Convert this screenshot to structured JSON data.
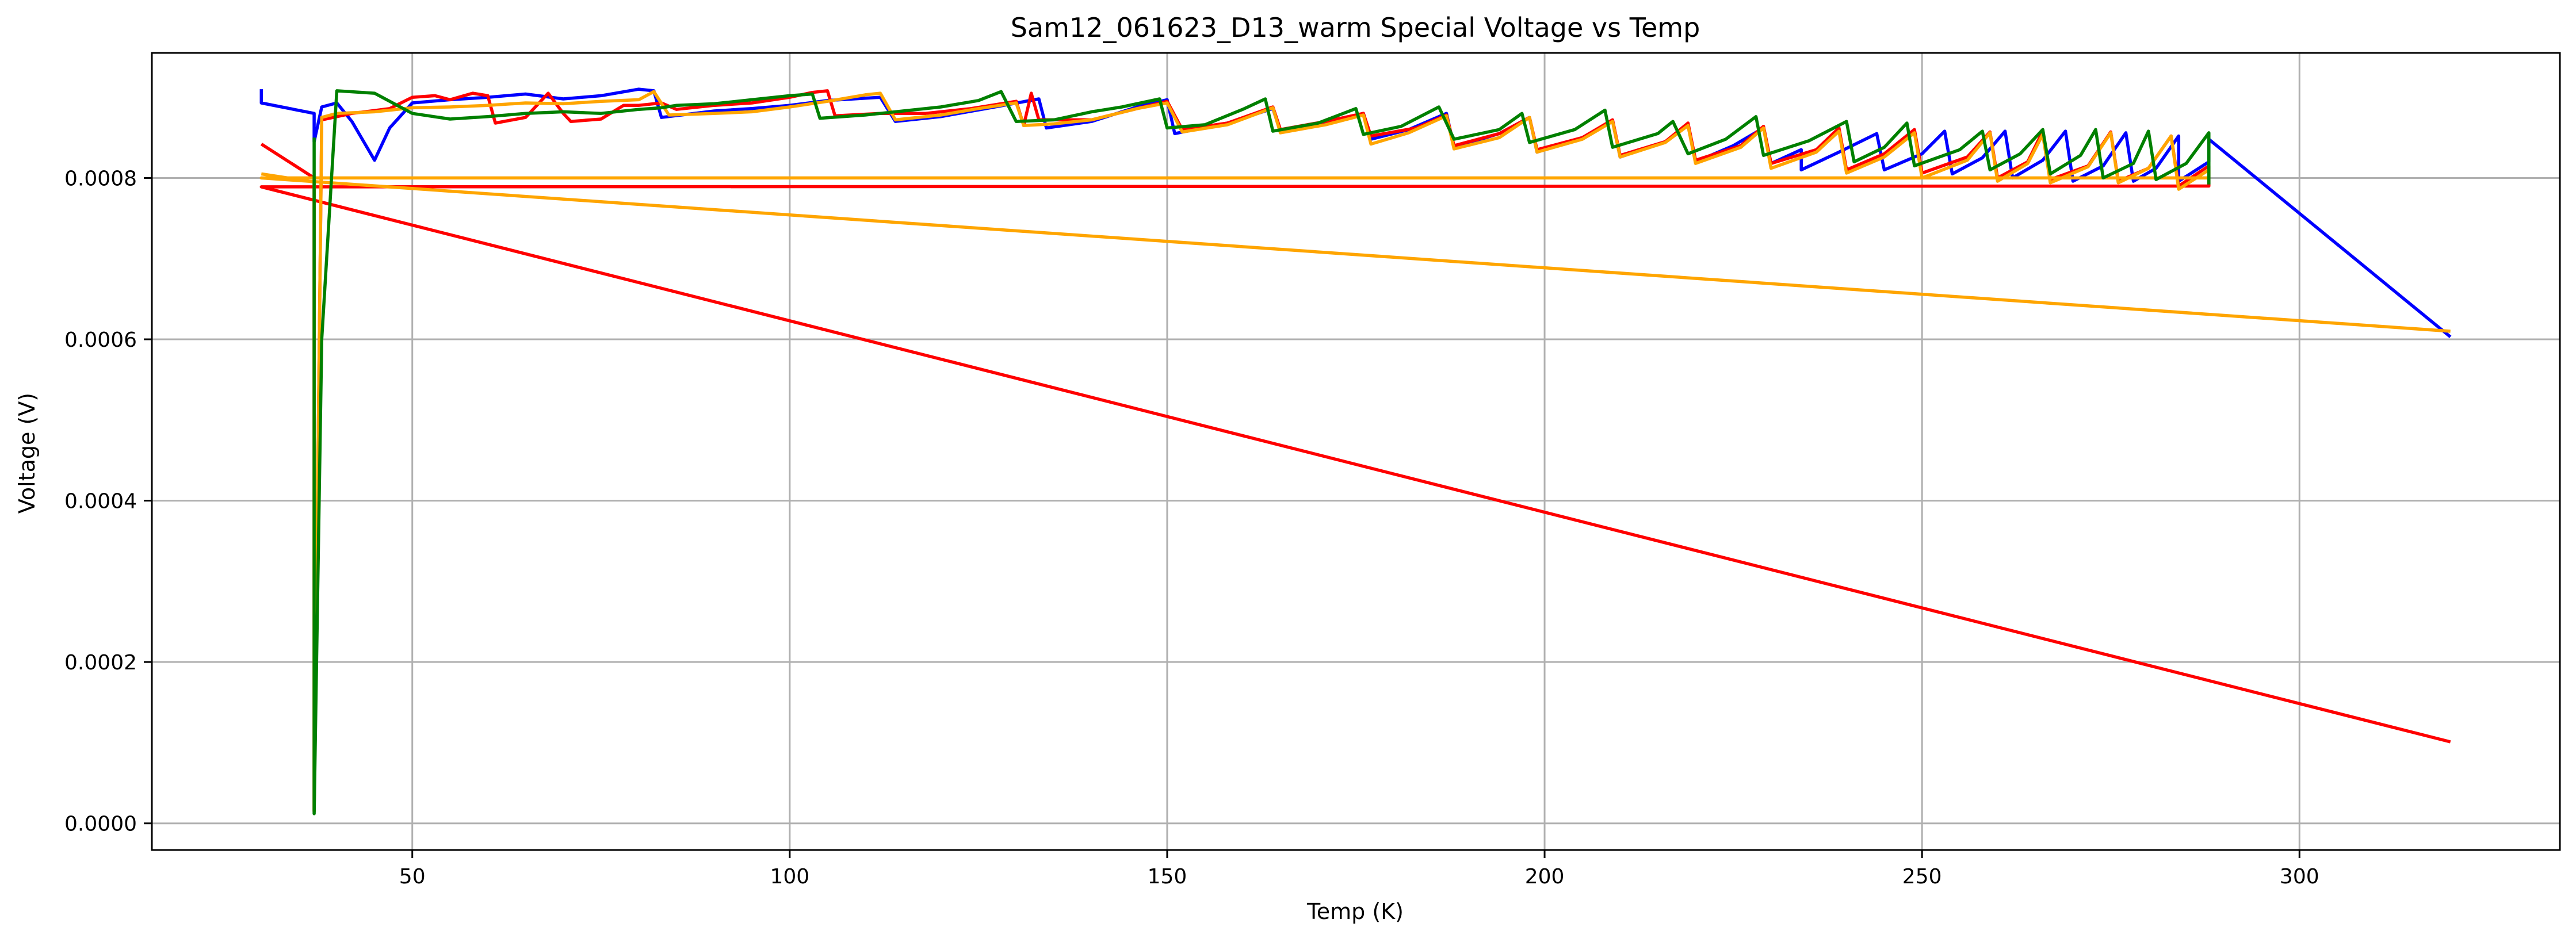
{
  "chart_data": {
    "type": "line",
    "title": "Sam12_061623_D13_warm Special Voltage vs Temp",
    "xlabel": "Temp (K)",
    "ylabel": "Voltage (V)",
    "xlim": [
      15.5,
      334.5
    ],
    "ylim": [
      -3.3e-05,
      0.000955
    ],
    "xticks": [
      50,
      100,
      150,
      200,
      250,
      300
    ],
    "xtick_labels": [
      "50",
      "100",
      "150",
      "200",
      "250",
      "300"
    ],
    "yticks": [
      0.0,
      0.0002,
      0.0004,
      0.0006,
      0.0008
    ],
    "ytick_labels": [
      "0.0000",
      "0.0002",
      "0.0004",
      "0.0006",
      "0.0008"
    ],
    "grid": true,
    "legend": "none",
    "series": [
      {
        "color": "#0000ff",
        "points": [
          [
            30,
            0.00091
          ],
          [
            30,
            0.000893
          ],
          [
            37,
            0.00088
          ],
          [
            37,
            0.000845
          ],
          [
            38,
            0.000888
          ],
          [
            40,
            0.000893
          ],
          [
            42,
            0.00087
          ],
          [
            45,
            0.000822
          ],
          [
            47,
            0.000862
          ],
          [
            50,
            0.000893
          ],
          [
            55,
            0.000897
          ],
          [
            60,
            0.0009
          ],
          [
            65,
            0.000904
          ],
          [
            70,
            0.000898
          ],
          [
            75,
            0.000902
          ],
          [
            80,
            0.00091
          ],
          [
            82,
            0.000908
          ],
          [
            83,
            0.000875
          ],
          [
            90,
            0.000883
          ],
          [
            95,
            0.000886
          ],
          [
            100,
            0.00089
          ],
          [
            105,
            0.000896
          ],
          [
            112,
            0.0009
          ],
          [
            114,
            0.00087
          ],
          [
            120,
            0.000876
          ],
          [
            126,
            0.000886
          ],
          [
            133,
            0.000898
          ],
          [
            134,
            0.000862
          ],
          [
            140,
            0.00087
          ],
          [
            146,
            0.000888
          ],
          [
            150,
            0.000897
          ],
          [
            151,
            0.000855
          ],
          [
            158,
            0.000868
          ],
          [
            164,
            0.000886
          ],
          [
            165,
            0.000858
          ],
          [
            171,
            0.000868
          ],
          [
            176,
            0.00088
          ],
          [
            177,
            0.000848
          ],
          [
            182,
            0.00086
          ],
          [
            187,
            0.00088
          ],
          [
            188,
            0.000838
          ],
          [
            194,
            0.000855
          ],
          [
            198,
            0.000875
          ],
          [
            199,
            0.000832
          ],
          [
            205,
            0.00085
          ],
          [
            209,
            0.00087
          ],
          [
            210,
            0.000826
          ],
          [
            216,
            0.000845
          ],
          [
            219,
            0.000865
          ],
          [
            220,
            0.00082
          ],
          [
            225,
            0.00084
          ],
          [
            229,
            0.000862
          ],
          [
            230,
            0.000818
          ],
          [
            234,
            0.000835
          ],
          [
            234,
            0.00081
          ],
          [
            239,
            0.000832
          ],
          [
            244,
            0.000855
          ],
          [
            245,
            0.00081
          ],
          [
            250,
            0.00083
          ],
          [
            253,
            0.000858
          ],
          [
            254,
            0.000805
          ],
          [
            258,
            0.000825
          ],
          [
            261,
            0.000858
          ],
          [
            262,
            0.0008
          ],
          [
            266,
            0.000822
          ],
          [
            269,
            0.000858
          ],
          [
            270,
            0.000796
          ],
          [
            274,
            0.000815
          ],
          [
            277,
            0.000856
          ],
          [
            278,
            0.000796
          ],
          [
            281,
            0.000812
          ],
          [
            284,
            0.000852
          ],
          [
            284,
            0.000796
          ],
          [
            288,
            0.00082
          ],
          [
            288,
            0.000848
          ],
          [
            320,
            0.000603
          ]
        ]
      },
      {
        "color": "#ff0000",
        "points": [
          [
            30,
            0.000842
          ],
          [
            37,
            0.0008
          ],
          [
            37,
            1.5e-05
          ],
          [
            38,
            0.000872
          ],
          [
            42,
            0.00088
          ],
          [
            47,
            0.000886
          ],
          [
            50,
            0.0009
          ],
          [
            53,
            0.000902
          ],
          [
            55,
            0.000897
          ],
          [
            58,
            0.000905
          ],
          [
            60,
            0.000902
          ],
          [
            61,
            0.000868
          ],
          [
            65,
            0.000875
          ],
          [
            68,
            0.000905
          ],
          [
            70,
            0.00088
          ],
          [
            71,
            0.00087
          ],
          [
            75,
            0.000873
          ],
          [
            78,
            0.00089
          ],
          [
            80,
            0.00089
          ],
          [
            83,
            0.000893
          ],
          [
            85,
            0.000885
          ],
          [
            90,
            0.00089
          ],
          [
            95,
            0.000893
          ],
          [
            100,
            0.0009
          ],
          [
            103,
            0.000906
          ],
          [
            105,
            0.000908
          ],
          [
            106,
            0.000877
          ],
          [
            112,
            0.00088
          ],
          [
            118,
            0.00088
          ],
          [
            124,
            0.000886
          ],
          [
            130,
            0.000895
          ],
          [
            131,
            0.000865
          ],
          [
            132,
            0.000905
          ],
          [
            133,
            0.000872
          ],
          [
            140,
            0.000872
          ],
          [
            146,
            0.000886
          ],
          [
            150,
            0.000895
          ],
          [
            152,
            0.00086
          ],
          [
            158,
            0.000868
          ],
          [
            164,
            0.000888
          ],
          [
            165,
            0.00086
          ],
          [
            171,
            0.00087
          ],
          [
            176,
            0.00088
          ],
          [
            177,
            0.000852
          ],
          [
            183,
            0.000862
          ],
          [
            187,
            0.000878
          ],
          [
            188,
            0.00084
          ],
          [
            194,
            0.000855
          ],
          [
            198,
            0.000875
          ],
          [
            199,
            0.000835
          ],
          [
            205,
            0.00085
          ],
          [
            209,
            0.000872
          ],
          [
            210,
            0.000828
          ],
          [
            216,
            0.000845
          ],
          [
            219,
            0.000868
          ],
          [
            220,
            0.000822
          ],
          [
            226,
            0.00084
          ],
          [
            229,
            0.000864
          ],
          [
            230,
            0.000818
          ],
          [
            236,
            0.000835
          ],
          [
            239,
            0.000862
          ],
          [
            240,
            0.00081
          ],
          [
            245,
            0.00083
          ],
          [
            249,
            0.00086
          ],
          [
            250,
            0.000806
          ],
          [
            256,
            0.000826
          ],
          [
            259,
            0.000857
          ],
          [
            260,
            0.0008
          ],
          [
            264,
            0.00082
          ],
          [
            266,
            0.000858
          ],
          [
            267,
            0.000798
          ],
          [
            272,
            0.000815
          ],
          [
            275,
            0.000857
          ],
          [
            276,
            0.000796
          ],
          [
            280,
            0.000812
          ],
          [
            283,
            0.000852
          ],
          [
            284,
            0.00079
          ],
          [
            288,
            0.000815
          ],
          [
            288,
            0.00079
          ],
          [
            30,
            0.000789
          ],
          [
            320,
            0.000101
          ]
        ]
      },
      {
        "color": "#ffa500",
        "points": [
          [
            30,
            0.000805
          ],
          [
            37,
            0.000795
          ],
          [
            37,
            1.5e-05
          ],
          [
            38,
            0.000875
          ],
          [
            40,
            0.00088
          ],
          [
            45,
            0.000882
          ],
          [
            50,
            0.000887
          ],
          [
            55,
            0.000888
          ],
          [
            60,
            0.00089
          ],
          [
            65,
            0.000893
          ],
          [
            70,
            0.000892
          ],
          [
            75,
            0.000895
          ],
          [
            80,
            0.000897
          ],
          [
            82,
            0.000907
          ],
          [
            84,
            0.000878
          ],
          [
            90,
            0.00088
          ],
          [
            95,
            0.000882
          ],
          [
            100,
            0.000888
          ],
          [
            105,
            0.000895
          ],
          [
            110,
            0.000903
          ],
          [
            112,
            0.000905
          ],
          [
            114,
            0.000872
          ],
          [
            120,
            0.000878
          ],
          [
            125,
            0.000886
          ],
          [
            130,
            0.000893
          ],
          [
            131,
            0.000865
          ],
          [
            135,
            0.000867
          ],
          [
            140,
            0.000872
          ],
          [
            146,
            0.000886
          ],
          [
            150,
            0.000893
          ],
          [
            152,
            0.000857
          ],
          [
            158,
            0.000866
          ],
          [
            164,
            0.000887
          ],
          [
            165,
            0.000856
          ],
          [
            171,
            0.000866
          ],
          [
            176,
            0.000878
          ],
          [
            177,
            0.000842
          ],
          [
            182,
            0.000856
          ],
          [
            187,
            0.000877
          ],
          [
            188,
            0.000836
          ],
          [
            194,
            0.00085
          ],
          [
            198,
            0.000875
          ],
          [
            199,
            0.000832
          ],
          [
            205,
            0.000848
          ],
          [
            209,
            0.00087
          ],
          [
            210,
            0.000826
          ],
          [
            216,
            0.000844
          ],
          [
            219,
            0.000865
          ],
          [
            220,
            0.000818
          ],
          [
            226,
            0.000838
          ],
          [
            229,
            0.000862
          ],
          [
            230,
            0.000812
          ],
          [
            236,
            0.000832
          ],
          [
            239,
            0.000858
          ],
          [
            240,
            0.000806
          ],
          [
            245,
            0.000826
          ],
          [
            249,
            0.000856
          ],
          [
            250,
            0.0008
          ],
          [
            256,
            0.000822
          ],
          [
            259,
            0.000856
          ],
          [
            260,
            0.000796
          ],
          [
            264,
            0.000818
          ],
          [
            266,
            0.000854
          ],
          [
            267,
            0.000794
          ],
          [
            272,
            0.000814
          ],
          [
            275,
            0.000856
          ],
          [
            276,
            0.000794
          ],
          [
            280,
            0.000812
          ],
          [
            283,
            0.000852
          ],
          [
            284,
            0.000786
          ],
          [
            288,
            0.00081
          ],
          [
            288,
            0.0008
          ],
          [
            30,
            0.0008
          ],
          [
            320,
            0.00061
          ]
        ]
      },
      {
        "color": "#008000",
        "points": [
          [
            37,
            0.00085
          ],
          [
            37,
            1.2e-05
          ],
          [
            38,
            0.0006
          ],
          [
            40,
            0.000908
          ],
          [
            45,
            0.000905
          ],
          [
            50,
            0.00088
          ],
          [
            55,
            0.000873
          ],
          [
            60,
            0.000876
          ],
          [
            65,
            0.00088
          ],
          [
            70,
            0.000882
          ],
          [
            75,
            0.00088
          ],
          [
            80,
            0.000885
          ],
          [
            83,
            0.000887
          ],
          [
            85,
            0.00089
          ],
          [
            90,
            0.000892
          ],
          [
            95,
            0.000897
          ],
          [
            100,
            0.000902
          ],
          [
            103,
            0.000904
          ],
          [
            104,
            0.000874
          ],
          [
            110,
            0.000878
          ],
          [
            115,
            0.000883
          ],
          [
            120,
            0.000888
          ],
          [
            125,
            0.000896
          ],
          [
            128,
            0.000907
          ],
          [
            130,
            0.00087
          ],
          [
            135,
            0.000872
          ],
          [
            140,
            0.000882
          ],
          [
            144,
            0.000888
          ],
          [
            149,
            0.000898
          ],
          [
            150,
            0.000862
          ],
          [
            155,
            0.000866
          ],
          [
            160,
            0.000885
          ],
          [
            163,
            0.000898
          ],
          [
            164,
            0.000858
          ],
          [
            170,
            0.000868
          ],
          [
            175,
            0.000886
          ],
          [
            176,
            0.000854
          ],
          [
            181,
            0.000864
          ],
          [
            186,
            0.000888
          ],
          [
            188,
            0.000848
          ],
          [
            194,
            0.00086
          ],
          [
            197,
            0.00088
          ],
          [
            198,
            0.000844
          ],
          [
            204,
            0.00086
          ],
          [
            208,
            0.000884
          ],
          [
            209,
            0.000838
          ],
          [
            215,
            0.000855
          ],
          [
            217,
            0.00087
          ],
          [
            219,
            0.00083
          ],
          [
            224,
            0.000848
          ],
          [
            228,
            0.000876
          ],
          [
            229,
            0.000828
          ],
          [
            235,
            0.000846
          ],
          [
            240,
            0.00087
          ],
          [
            241,
            0.00082
          ],
          [
            245,
            0.000838
          ],
          [
            248,
            0.000868
          ],
          [
            249,
            0.000815
          ],
          [
            255,
            0.000835
          ],
          [
            258,
            0.000858
          ],
          [
            259,
            0.00081
          ],
          [
            263,
            0.00083
          ],
          [
            266,
            0.00086
          ],
          [
            267,
            0.000805
          ],
          [
            271,
            0.000828
          ],
          [
            273,
            0.00086
          ],
          [
            274,
            0.0008
          ],
          [
            278,
            0.000818
          ],
          [
            280,
            0.000858
          ],
          [
            281,
            0.000798
          ],
          [
            285,
            0.000818
          ],
          [
            288,
            0.000856
          ],
          [
            288,
            0.000792
          ]
        ]
      }
    ]
  }
}
